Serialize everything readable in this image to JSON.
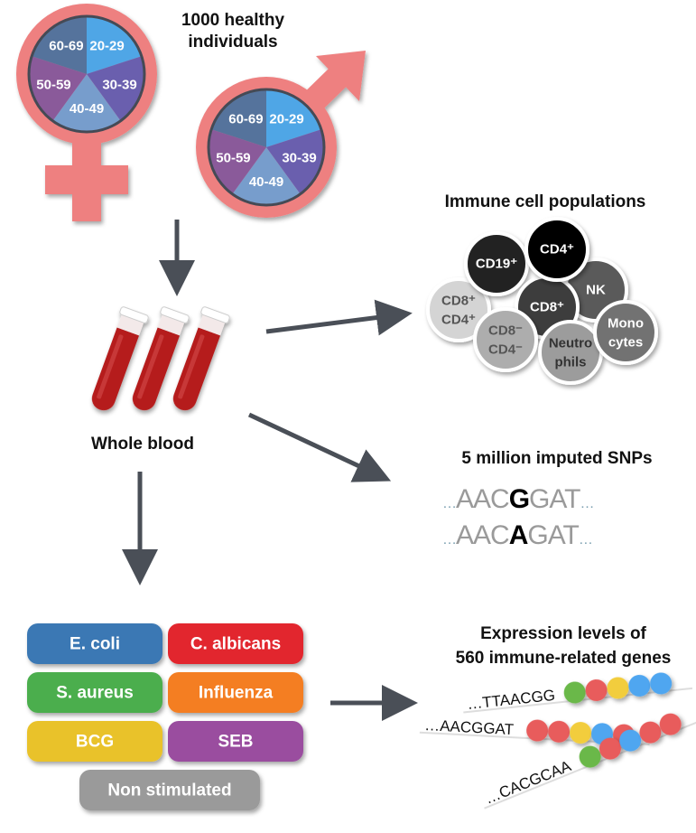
{
  "title": "1000 healthy individuals",
  "title_lines": [
    "1000 healthy",
    "individuals"
  ],
  "age_groups": [
    {
      "label": "20-29",
      "color": "#4fa6e6"
    },
    {
      "label": "30-39",
      "color": "#6a5fae"
    },
    {
      "label": "40-49",
      "color": "#779dcc"
    },
    {
      "label": "50-59",
      "color": "#8a5a9a"
    },
    {
      "label": "60-69",
      "color": "#55739c"
    }
  ],
  "symbol_color": "#ee8080",
  "whole_blood": "Whole blood",
  "immune": {
    "title": "Immune cell populations",
    "cells": [
      {
        "l1": "CD19⁺",
        "l2": "",
        "color": "#232323",
        "text": "#fff"
      },
      {
        "l1": "CD4⁺",
        "l2": "",
        "color": "#050505",
        "text": "#fff"
      },
      {
        "l1": "NK",
        "l2": "",
        "color": "#5a5a5a",
        "text": "#fff"
      },
      {
        "l1": "CD8⁺",
        "l2": "CD4⁺",
        "color": "#d4d4d4",
        "text": "#555"
      },
      {
        "l1": "CD8⁺",
        "l2": "",
        "color": "#3c3c3c",
        "text": "#fff"
      },
      {
        "l1": "CD8⁻",
        "l2": "CD4⁻",
        "color": "#adadad",
        "text": "#555"
      },
      {
        "l1": "Neutro",
        "l2": "phils",
        "color": "#9c9c9c",
        "text": "#333"
      },
      {
        "l1": "Mono",
        "l2": "cytes",
        "color": "#727272",
        "text": "#fff"
      }
    ]
  },
  "snps": {
    "title": "5 million imputed SNPs",
    "rows": [
      {
        "pre": "AAC",
        "allele": "G",
        "post": "GAT"
      },
      {
        "pre": "AAC",
        "allele": "A",
        "post": "GAT"
      }
    ],
    "ellipsis": "…"
  },
  "stimuli": [
    {
      "label": "E. coli",
      "color": "#3a78b4"
    },
    {
      "label": "C. albicans",
      "color": "#e2282d"
    },
    {
      "label": "S. aureus",
      "color": "#4cae4e"
    },
    {
      "label": "Influenza",
      "color": "#f47e20"
    },
    {
      "label": "BCG",
      "color": "#e9c22b"
    },
    {
      "label": "SEB",
      "color": "#9a4e9f"
    },
    {
      "label": "Non stimulated",
      "color": "#9a9a9a"
    }
  ],
  "expression": {
    "title_lines": [
      "Expression levels of",
      "560 immune-related genes"
    ],
    "genes": [
      {
        "seq": "…TTAACGG",
        "beads": [
          "#6ab84a",
          "#e85c5c",
          "#f2cd3c",
          "#4fa6f0",
          "#4fa6f0"
        ]
      },
      {
        "seq": "…AACGGAT",
        "beads": [
          "#e85c5c",
          "#e85c5c",
          "#f2cd3c",
          "#4fa6f0",
          "#e85c5c"
        ]
      },
      {
        "seq": "…CACGCAA",
        "beads": [
          "#6ab84a",
          "#e85c5c",
          "#4fa6f0",
          "#e85c5c",
          "#e85c5c"
        ]
      }
    ]
  },
  "arrow_color": "#4a4f57"
}
